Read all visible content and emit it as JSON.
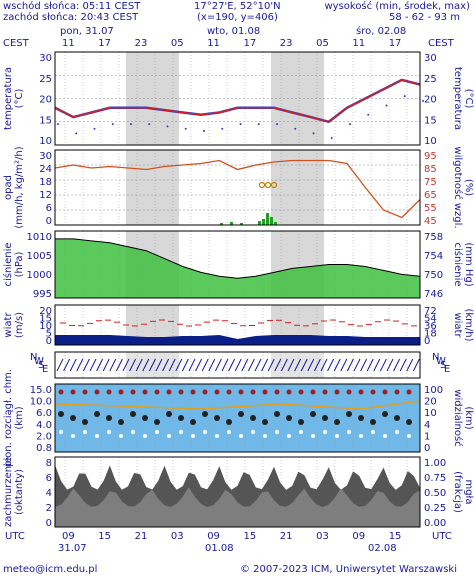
{
  "header": {
    "sunrise": "wschód słońca: 05:11 CEST",
    "sunset": "zachód słońca: 20:43 CEST",
    "coords": "17°27'E, 52°10'N",
    "grid": "(x=190, y=406)",
    "altitude_label": "wysokość (min, środek, max)",
    "altitude_values": "58 - 62 - 93 m"
  },
  "top_axis": {
    "tz_left": "CEST",
    "tz_right": "CEST",
    "days": [
      "pon, 31.07",
      "wto, 01.08",
      "śro, 02.08"
    ],
    "hours": [
      "11",
      "17",
      "23",
      "05",
      "11",
      "17",
      "23",
      "05",
      "11",
      "17"
    ]
  },
  "bottom_axis": {
    "tz_left": "UTC",
    "tz_right": "UTC",
    "hours": [
      "09",
      "15",
      "21",
      "03",
      "09",
      "15",
      "21",
      "03",
      "09",
      "15"
    ],
    "dates": [
      "31.07",
      "01.08",
      "02.08"
    ]
  },
  "panels": {
    "temp": {
      "left_label": "temperatura",
      "left_unit": "(°C)",
      "right_label": "temperatura",
      "right_unit": "(°C)",
      "left_ticks": [
        "30",
        "25",
        "20",
        "15",
        "10"
      ],
      "right_ticks": [
        "30",
        "25",
        "20",
        "15",
        "10"
      ]
    },
    "precip": {
      "left_label": "opad",
      "left_unit": "(mm/h, kg/m²/h)",
      "right_label": "wilgotność wzgl.",
      "right_unit": "(%)",
      "left_ticks": [
        "30",
        "24",
        "18",
        "12",
        "6",
        "0"
      ],
      "right_ticks": [
        "95",
        "85",
        "75",
        "65",
        "55",
        "45"
      ]
    },
    "pressure": {
      "left_label": "ciśnienie",
      "left_unit": "(hPa)",
      "right_label": "ciśnienie",
      "right_unit": "(mm Hg)",
      "left_ticks": [
        "1010",
        "1005",
        "1000",
        "995"
      ],
      "right_ticks": [
        "758",
        "754",
        "750",
        "746"
      ]
    },
    "wind": {
      "left_label": "wiatr",
      "left_unit": "(m/s)",
      "right_label": "wiatr",
      "right_unit": "(km/h)",
      "left_ticks": [
        "20",
        "15",
        "10",
        "5",
        "0"
      ],
      "right_ticks": [
        "72",
        "54",
        "36",
        "18",
        "0"
      ]
    },
    "winddir": {
      "left_dirs": [
        "N",
        "W",
        "S",
        "E"
      ],
      "right_dirs": [
        "N",
        "W",
        "S",
        "E"
      ]
    },
    "visibility": {
      "left_label": "pion. rozciągł. chm.",
      "left_unit": "(km)",
      "right_label": "widzialność",
      "right_unit": "(km)",
      "left_ticks": [
        "15.0",
        "10.0",
        "6.0",
        "4.0",
        "2.0",
        "0.8"
      ],
      "right_ticks": [
        "100",
        "20",
        "10",
        "4",
        "1",
        "0"
      ]
    },
    "clouds": {
      "left_label": "zachmurzenie",
      "left_unit": "(oktanty)",
      "right_label": "(frakcja)",
      "right_unit": "mgła",
      "left_ticks": [
        "8",
        "6",
        "4",
        "2",
        "0"
      ],
      "right_ticks": [
        "1.00",
        "0.75",
        "0.50",
        "0.25",
        "0.00"
      ]
    }
  },
  "footer": {
    "email": "meteo@icm.edu.pl",
    "copyright": "© 2007-2023 ICM, Uniwersytet Warszawski"
  },
  "colors": {
    "axis_blue": "#1a1a9a",
    "temp_red": "#d42020",
    "humidity_orange": "#d05020",
    "pressure_green": "#40c040",
    "wind_blue": "#0a1e8a",
    "night_gray": "#d8d8d8"
  },
  "chart_data": [
    {
      "type": "line",
      "name": "temperature",
      "x": [
        0,
        3,
        6,
        9,
        12,
        15,
        18,
        21,
        24,
        27,
        30,
        33,
        36,
        39,
        42,
        45,
        48,
        51,
        54,
        57,
        60
      ],
      "values": [
        18,
        16,
        17,
        18,
        18,
        18,
        17.5,
        17,
        16.5,
        17,
        18,
        18,
        18,
        17,
        16,
        15,
        18,
        20,
        22,
        24,
        23
      ],
      "ylim": [
        10,
        30
      ]
    },
    {
      "type": "line",
      "name": "relative humidity",
      "x": [
        0,
        3,
        6,
        9,
        12,
        15,
        18,
        21,
        24,
        27,
        30,
        33,
        36,
        39,
        42,
        45,
        48,
        51,
        54,
        57,
        60
      ],
      "values": [
        83,
        85,
        83,
        84,
        83,
        82,
        84,
        85,
        86,
        88,
        82,
        85,
        87,
        88,
        88,
        88,
        86,
        70,
        55,
        50,
        62
      ],
      "ylim": [
        45,
        95
      ]
    },
    {
      "type": "area",
      "name": "pressure",
      "x": [
        0,
        3,
        6,
        9,
        12,
        15,
        18,
        21,
        24,
        27,
        30,
        33,
        36,
        39,
        42,
        45,
        48,
        51,
        54,
        57,
        60
      ],
      "values": [
        1010,
        1010,
        1009.5,
        1009,
        1008,
        1007,
        1005,
        1003,
        1001.5,
        1000.5,
        1000,
        1000.5,
        1001.5,
        1002.5,
        1003,
        1003.5,
        1003.5,
        1003,
        1002,
        1001,
        1000.5
      ],
      "ylim": [
        995,
        1012
      ]
    },
    {
      "type": "area",
      "name": "wind",
      "x": [
        0,
        3,
        6,
        9,
        12,
        15,
        18,
        21,
        24,
        27,
        30,
        33,
        36,
        39,
        42,
        45,
        48,
        51,
        54,
        57,
        60
      ],
      "values": [
        5,
        5,
        5,
        5,
        4.5,
        4,
        4,
        4.5,
        4.5,
        5,
        3,
        4.5,
        5,
        5,
        5,
        4.5,
        4.5,
        4,
        4,
        4,
        4
      ],
      "ylim": [
        0,
        20
      ]
    }
  ]
}
